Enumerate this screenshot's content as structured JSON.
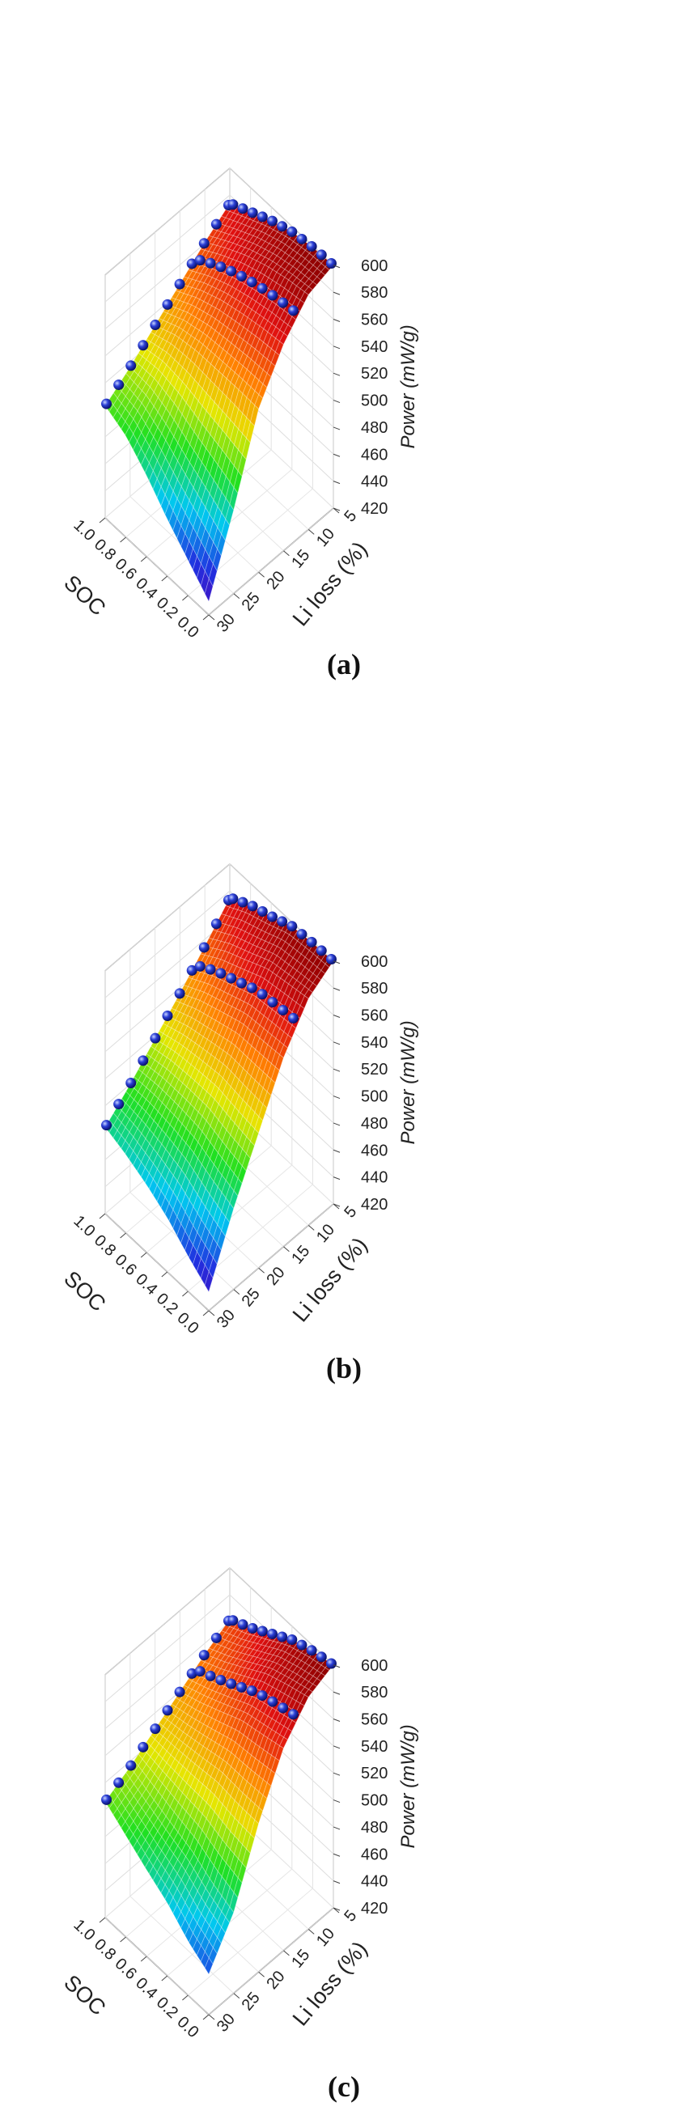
{
  "chart_data": [
    {
      "panel": "(a)",
      "type": "surface3d",
      "x_axis": {
        "label": "SOC",
        "ticks": [
          "1.0",
          "0.8",
          "0.6",
          "0.4",
          "0.2",
          "0.0"
        ],
        "range": [
          1.0,
          0.0
        ]
      },
      "y_axis": {
        "label": "Li loss (%)",
        "ticks": [
          "5",
          "10",
          "15",
          "20",
          "25",
          "30"
        ],
        "range": [
          5,
          30
        ]
      },
      "z_axis": {
        "label": "Power (mW/g)",
        "ticks": [
          "600",
          "580",
          "560",
          "540",
          "520",
          "500",
          "480",
          "460",
          "440",
          "420"
        ],
        "range": [
          420,
          600
        ]
      },
      "li_loss": [
        5,
        10,
        15,
        20,
        25,
        30
      ],
      "power_at_soc_1": [
        574,
        561,
        546,
        531,
        516,
        503
      ],
      "power_at_soc_0": [
        600,
        594,
        573,
        541,
        482,
        430
      ],
      "power_at_li5": [
        574,
        582,
        590,
        596,
        599,
        600
      ],
      "power_at_li30": [
        503,
        495,
        480,
        462,
        446,
        430
      ],
      "colormap": [
        "#5a00b0",
        "#2030e0",
        "#00c8f0",
        "#20e020",
        "#e6e600",
        "#ff8000",
        "#e01010",
        "#8b0000"
      ],
      "grid": true
    },
    {
      "panel": "(b)",
      "type": "surface3d",
      "x_axis": {
        "label": "SOC",
        "ticks": [
          "1.0",
          "0.8",
          "0.6",
          "0.4",
          "0.2",
          "0.0"
        ],
        "range": [
          1.0,
          0.0
        ]
      },
      "y_axis": {
        "label": "Li loss (%)",
        "ticks": [
          "5",
          "10",
          "15",
          "20",
          "25",
          "30"
        ],
        "range": [
          5,
          30
        ]
      },
      "z_axis": {
        "label": "Power (mW/g)",
        "ticks": [
          "600",
          "580",
          "560",
          "540",
          "520",
          "500",
          "480",
          "460",
          "440",
          "420"
        ],
        "range": [
          420,
          600
        ]
      },
      "li_loss": [
        5,
        10,
        15,
        20,
        25,
        30
      ],
      "power_at_soc_1": [
        575,
        555,
        536,
        518,
        500,
        484
      ],
      "power_at_soc_0": [
        600,
        588,
        560,
        520,
        480,
        434
      ],
      "power_at_li5": [
        575,
        584,
        590,
        597,
        599,
        600
      ],
      "power_at_li30": [
        484,
        478,
        470,
        460,
        446,
        434
      ],
      "colormap": [
        "#5a00b0",
        "#2030e0",
        "#00c8f0",
        "#20e020",
        "#e6e600",
        "#ff8000",
        "#e01010",
        "#8b0000"
      ],
      "grid": true
    },
    {
      "panel": "(c)",
      "type": "surface3d",
      "x_axis": {
        "label": "SOC",
        "ticks": [
          "1.0",
          "0.8",
          "0.6",
          "0.4",
          "0.2",
          "0.0"
        ],
        "range": [
          1.0,
          0.0
        ]
      },
      "y_axis": {
        "label": "Li loss (%)",
        "ticks": [
          "5",
          "10",
          "15",
          "20",
          "25",
          "30"
        ],
        "range": [
          5,
          30
        ]
      },
      "z_axis": {
        "label": "Power (mW/g)",
        "ticks": [
          "600",
          "580",
          "560",
          "540",
          "520",
          "500",
          "480",
          "460",
          "440",
          "420"
        ],
        "range": [
          420,
          600
        ]
      },
      "li_loss": [
        5,
        10,
        15,
        20,
        25,
        30
      ],
      "power_at_soc_1": [
        562,
        552,
        540,
        528,
        516,
        506
      ],
      "power_at_soc_0": [
        600,
        592,
        570,
        530,
        480,
        450
      ],
      "power_at_li5": [
        562,
        570,
        580,
        590,
        596,
        600
      ],
      "power_at_li30": [
        506,
        495,
        484,
        474,
        460,
        450
      ],
      "colormap": [
        "#5a00b0",
        "#2030e0",
        "#00c8f0",
        "#20e020",
        "#e6e600",
        "#ff8000",
        "#e01010",
        "#8b0000"
      ],
      "grid": true
    }
  ],
  "panels": [
    {
      "label": "(a)"
    },
    {
      "label": "(b)"
    },
    {
      "label": "(c)"
    }
  ]
}
